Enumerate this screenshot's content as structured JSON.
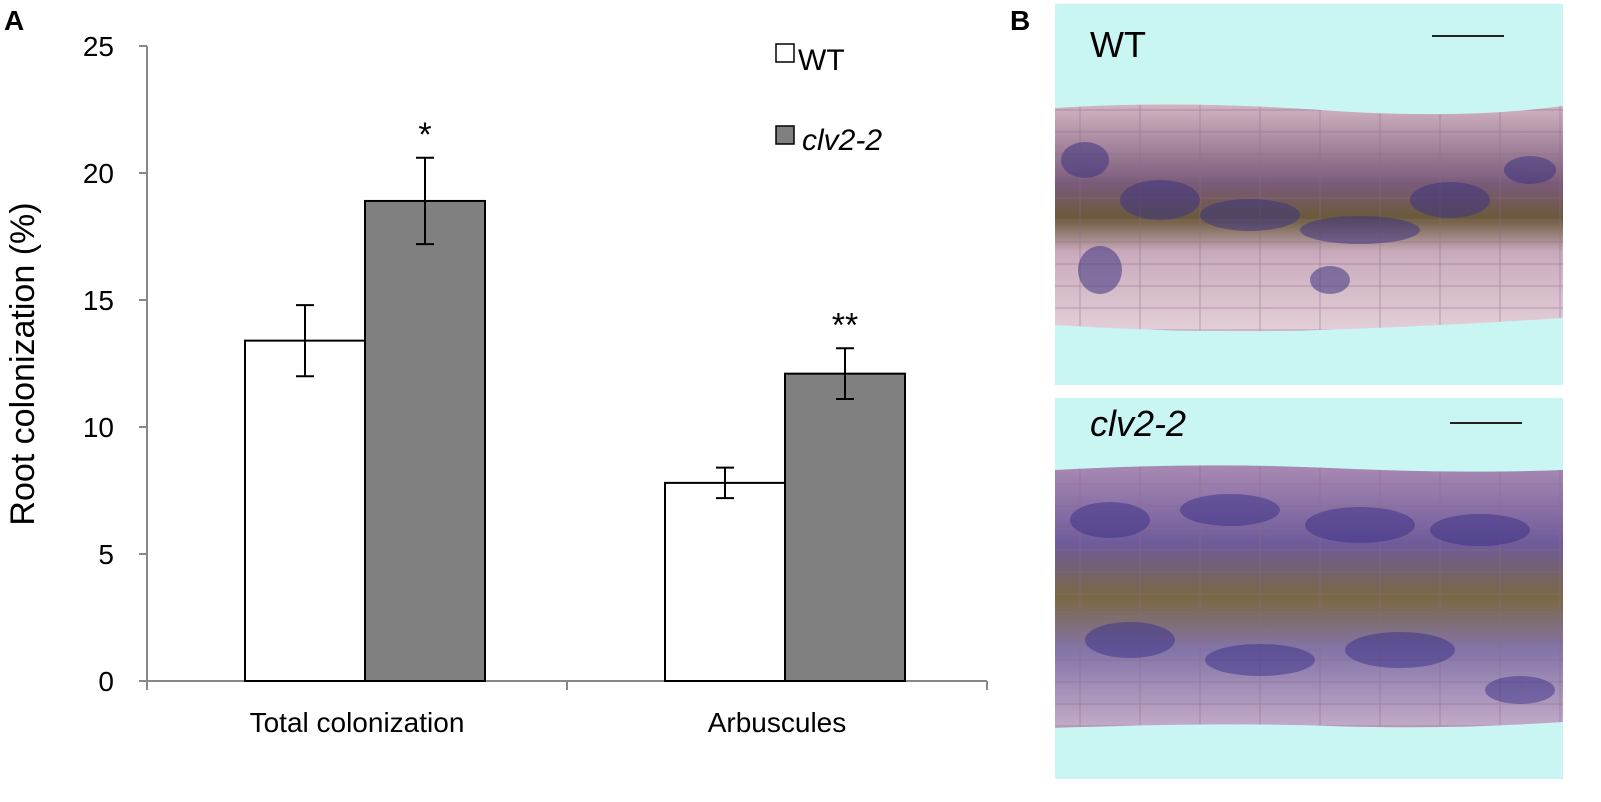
{
  "panel_a_label": "A",
  "panel_b_label": "B",
  "chart_data": {
    "type": "bar",
    "categories": [
      "Total colonization",
      "Arbuscules"
    ],
    "series": [
      {
        "name": "WT",
        "values": [
          13.4,
          7.8
        ],
        "errors": [
          1.4,
          0.6
        ],
        "color": "#ffffff"
      },
      {
        "name": "clv2-2",
        "values": [
          18.9,
          12.1
        ],
        "errors": [
          1.7,
          1.0
        ],
        "color": "#808080"
      }
    ],
    "significance": [
      "*",
      "**"
    ],
    "ylabel": "Root colonization (%)",
    "ylim": [
      0,
      25
    ],
    "yticks": [
      "0",
      "5",
      "10",
      "15",
      "20",
      "25"
    ],
    "legend_position": "top-right",
    "grid": false
  },
  "micrographs": [
    {
      "label": "WT",
      "italic": false
    },
    {
      "label": "clv2-2",
      "italic": true
    }
  ],
  "colors": {
    "micrograph_background": "#c9f5f3",
    "root_tissue": "#d9c2c6",
    "fungal_stain": "#4a3f8f"
  }
}
